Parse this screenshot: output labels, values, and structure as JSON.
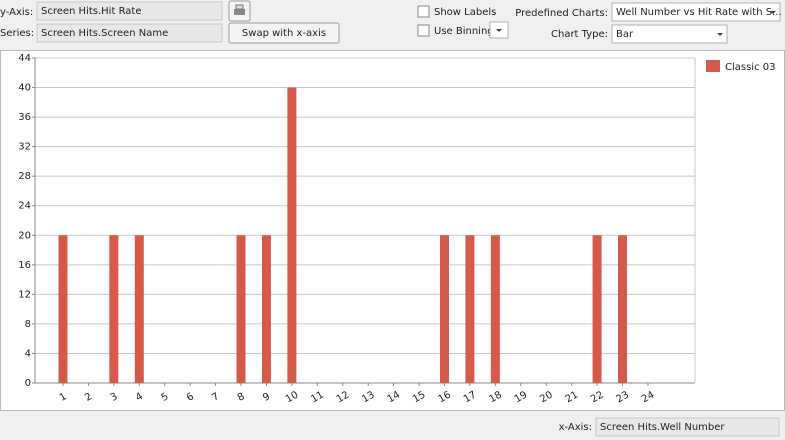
{
  "controls": {
    "y_axis_label": "y-Axis:",
    "y_axis_value": "Screen Hits.Hit Rate",
    "series_label": "Series:",
    "series_value": "Screen Hits.Screen Name",
    "swap_button": "Swap with x-axis",
    "show_labels": "Show Labels",
    "use_binning": "Use Binning",
    "predefined_label": "Predefined Charts:",
    "predefined_value": "Well Number vs Hit Rate with S...",
    "chart_type_label": "Chart Type:",
    "chart_type_value": "Bar",
    "x_axis_label": "x-Axis:",
    "x_axis_value": "Screen Hits.Well Number"
  },
  "chart_data": {
    "type": "bar",
    "x": [
      1,
      3,
      4,
      8,
      9,
      10,
      16,
      17,
      18,
      22,
      23
    ],
    "series": [
      {
        "name": "Classic 03",
        "color": "#d65a4a",
        "values": [
          20,
          20,
          20,
          20,
          20,
          40,
          20,
          20,
          20,
          20,
          20
        ]
      }
    ],
    "xlim": [
      -0.1,
      25.85
    ],
    "xticks": [
      1,
      2,
      3,
      4,
      5,
      6,
      7,
      8,
      9,
      10,
      11,
      12,
      13,
      14,
      15,
      16,
      17,
      18,
      19,
      20,
      21,
      22,
      23,
      24
    ],
    "ylim": [
      0,
      44
    ],
    "yticks": [
      0,
      4,
      8,
      12,
      16,
      20,
      24,
      28,
      32,
      36,
      40,
      44
    ],
    "grid": true,
    "legend": "top-right"
  }
}
